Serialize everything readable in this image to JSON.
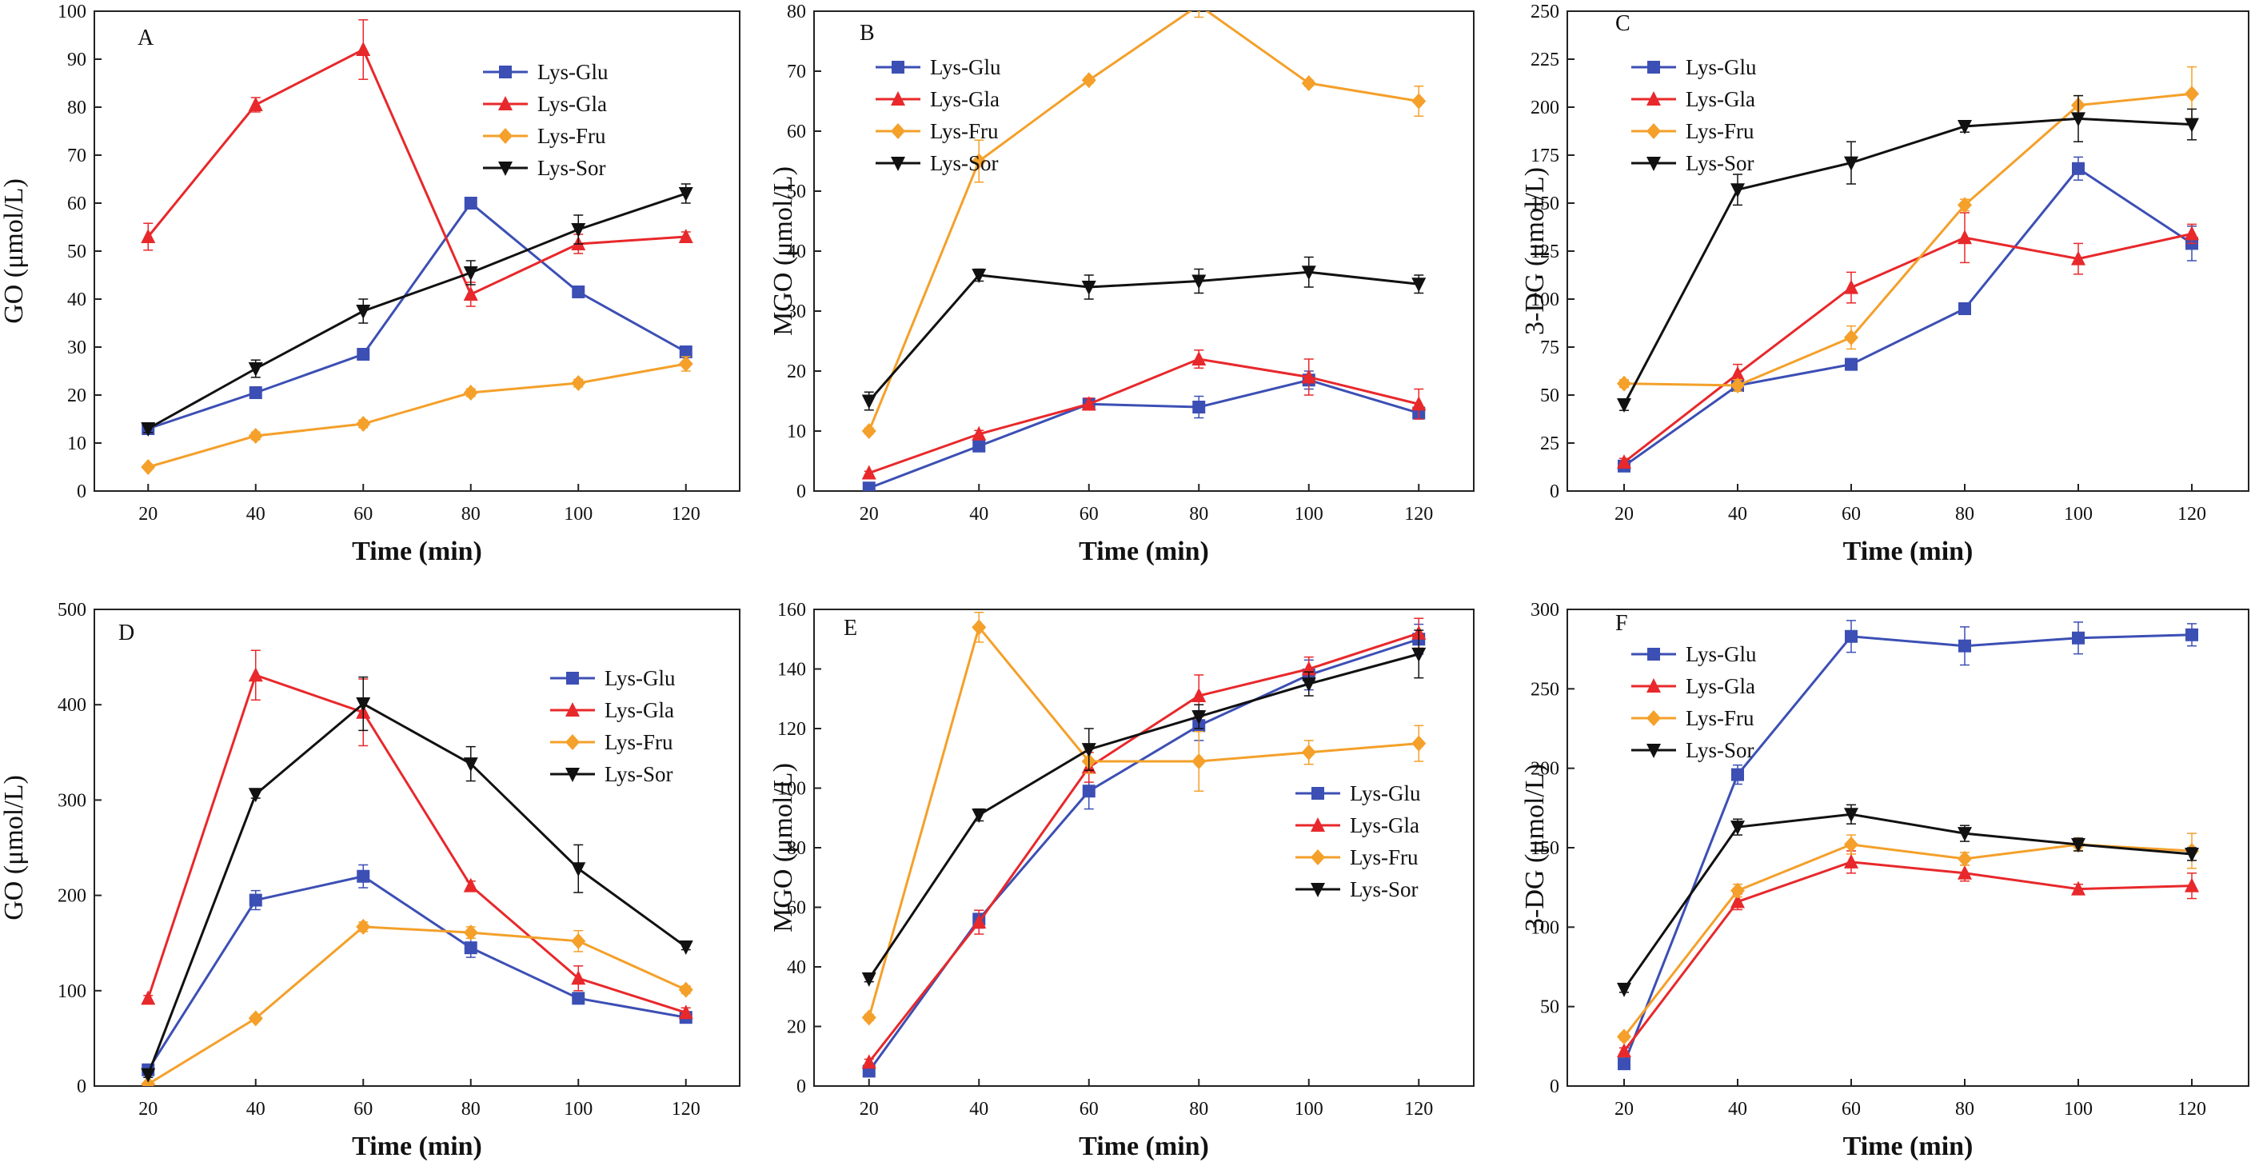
{
  "figure": {
    "label": "Six-panel figure: GO, MGO and 3-DG concentrations over time"
  },
  "colors": {
    "Lys-Glu": "#3c4fb4",
    "Lys-Gla": "#e8282b",
    "Lys-Fru": "#f4a02a",
    "Lys-Sor": "#111111",
    "axis": "#222222"
  },
  "markers": {
    "Lys-Glu": "square",
    "Lys-Gla": "triangle-up",
    "Lys-Fru": "diamond",
    "Lys-Sor": "triangle-down"
  },
  "chart_data": [
    {
      "panel": "A",
      "type": "line",
      "xlabel": "Time (min)",
      "ylabel": "GO (μmol/L)",
      "x": [
        20,
        40,
        60,
        80,
        100,
        120
      ],
      "xlim": [
        10,
        130
      ],
      "ylim": [
        0,
        100
      ],
      "xticks": [
        20,
        40,
        60,
        80,
        100,
        120
      ],
      "yticks": [
        0,
        10,
        20,
        30,
        40,
        50,
        60,
        70,
        80,
        90,
        100
      ],
      "legend_position": "top-right",
      "legend_font": "serif",
      "series": [
        {
          "name": "Lys-Glu",
          "values": [
            13,
            20.5,
            28.5,
            60,
            41.5,
            29
          ],
          "errors": [
            0.5,
            0.8,
            1,
            0.8,
            1,
            0.8
          ]
        },
        {
          "name": "Lys-Gla",
          "values": [
            53,
            80.5,
            92,
            41,
            51.5,
            53
          ],
          "errors": [
            2.8,
            1.5,
            6.2,
            2.5,
            2,
            1
          ]
        },
        {
          "name": "Lys-Fru",
          "values": [
            5,
            11.5,
            14,
            20.5,
            22.5,
            26.5
          ],
          "errors": [
            0.4,
            0.8,
            0.8,
            0.8,
            0.8,
            1.5
          ]
        },
        {
          "name": "Lys-Sor",
          "values": [
            13,
            25.5,
            37.5,
            45.5,
            54.5,
            62
          ],
          "errors": [
            0.8,
            1.8,
            2.5,
            2.5,
            3,
            2
          ]
        }
      ]
    },
    {
      "panel": "B",
      "type": "line",
      "xlabel": "Time (min)",
      "ylabel": "MGO (μmol/L)",
      "x": [
        20,
        40,
        60,
        80,
        100,
        120
      ],
      "xlim": [
        10,
        130
      ],
      "ylim": [
        0,
        80
      ],
      "xticks": [
        20,
        40,
        60,
        80,
        100,
        120
      ],
      "yticks": [
        0,
        10,
        20,
        30,
        40,
        50,
        60,
        70,
        80
      ],
      "legend_position": "top-left",
      "legend_font": "serif",
      "series": [
        {
          "name": "Lys-Glu",
          "values": [
            0.5,
            7.5,
            14.5,
            14,
            18.5,
            13
          ],
          "errors": [
            0.3,
            0.8,
            1,
            1.8,
            1.5,
            1
          ]
        },
        {
          "name": "Lys-Gla",
          "values": [
            3,
            9.5,
            14.5,
            22,
            19,
            14.5
          ],
          "errors": [
            0.3,
            0.6,
            1,
            1.5,
            3,
            2.5
          ]
        },
        {
          "name": "Lys-Fru",
          "values": [
            10,
            55,
            68.5,
            81,
            68,
            65
          ],
          "errors": [
            0.5,
            3.5,
            0.5,
            2,
            0.5,
            2.5
          ]
        },
        {
          "name": "Lys-Sor",
          "values": [
            15,
            36,
            34,
            35,
            36.5,
            34.5
          ],
          "errors": [
            1.5,
            1,
            2,
            2,
            2.5,
            1.5
          ]
        }
      ]
    },
    {
      "panel": "C",
      "type": "line",
      "xlabel": "Time (min)",
      "ylabel": "3-DG (μmol/L)",
      "x": [
        20,
        40,
        60,
        80,
        100,
        120
      ],
      "xlim": [
        10,
        130
      ],
      "ylim": [
        0,
        250
      ],
      "xticks": [
        20,
        40,
        60,
        80,
        100,
        120
      ],
      "yticks": [
        0,
        25,
        50,
        75,
        100,
        125,
        150,
        175,
        200,
        225,
        250
      ],
      "legend_position": "top-left",
      "legend_font": "serif",
      "series": [
        {
          "name": "Lys-Glu",
          "values": [
            13,
            55,
            66,
            95,
            168,
            129
          ],
          "errors": [
            2,
            3,
            3,
            3,
            6,
            9
          ]
        },
        {
          "name": "Lys-Gla",
          "values": [
            15,
            61,
            106,
            132,
            121,
            134
          ],
          "errors": [
            2,
            5,
            8,
            13,
            8,
            5
          ]
        },
        {
          "name": "Lys-Fru",
          "values": [
            56,
            55,
            80,
            149,
            201,
            207
          ],
          "errors": [
            2,
            3,
            6,
            3,
            5,
            14
          ]
        },
        {
          "name": "Lys-Sor",
          "values": [
            45,
            157,
            171,
            190,
            194,
            191
          ],
          "errors": [
            3,
            8,
            11,
            3,
            12,
            8
          ]
        }
      ]
    },
    {
      "panel": "D",
      "type": "line",
      "xlabel": "Time (min)",
      "ylabel": "GO (μmol/L)",
      "x": [
        20,
        40,
        60,
        80,
        100,
        120
      ],
      "xlim": [
        10,
        130
      ],
      "ylim": [
        0,
        500
      ],
      "xticks": [
        20,
        40,
        60,
        80,
        100,
        120
      ],
      "yticks": [
        0,
        100,
        200,
        300,
        400,
        500
      ],
      "legend_position": "top-right",
      "legend_font": "sans",
      "series": [
        {
          "name": "Lys-Glu",
          "values": [
            17,
            195,
            220,
            145,
            92,
            72
          ],
          "errors": [
            3,
            10,
            12,
            10,
            4,
            4
          ]
        },
        {
          "name": "Lys-Gla",
          "values": [
            92,
            431,
            392,
            210,
            113,
            77
          ],
          "errors": [
            3,
            26,
            35,
            5,
            13,
            5
          ]
        },
        {
          "name": "Lys-Fru",
          "values": [
            2,
            71,
            167,
            161,
            152,
            101
          ],
          "errors": [
            1,
            3,
            5,
            6,
            11,
            4
          ]
        },
        {
          "name": "Lys-Sor",
          "values": [
            12,
            306,
            401,
            338,
            228,
            146
          ],
          "errors": [
            3,
            4,
            28,
            18,
            25,
            3
          ]
        }
      ]
    },
    {
      "panel": "E",
      "type": "line",
      "xlabel": "Time (min)",
      "ylabel": "MGO (μmol/L)",
      "x": [
        20,
        40,
        60,
        80,
        100,
        120
      ],
      "xlim": [
        10,
        130
      ],
      "ylim": [
        0,
        160
      ],
      "xticks": [
        20,
        40,
        60,
        80,
        100,
        120
      ],
      "yticks": [
        0,
        20,
        40,
        60,
        80,
        100,
        120,
        140,
        160
      ],
      "legend_position": "center-right",
      "legend_font": "sans",
      "series": [
        {
          "name": "Lys-Glu",
          "values": [
            5,
            56,
            99,
            121,
            138,
            150
          ],
          "errors": [
            1,
            3,
            6,
            5,
            5,
            5
          ]
        },
        {
          "name": "Lys-Gla",
          "values": [
            8,
            55,
            107,
            131,
            140,
            152
          ],
          "errors": [
            1,
            4,
            5,
            7,
            4,
            5
          ]
        },
        {
          "name": "Lys-Fru",
          "values": [
            23,
            154,
            109,
            109,
            112,
            115
          ],
          "errors": [
            1,
            5,
            4,
            10,
            4,
            6
          ]
        },
        {
          "name": "Lys-Sor",
          "values": [
            36,
            91,
            113,
            124,
            135,
            145
          ],
          "errors": [
            1,
            2,
            7,
            4,
            4,
            8
          ]
        }
      ]
    },
    {
      "panel": "F",
      "type": "line",
      "xlabel": "Time (min)",
      "ylabel": "3-DG (μmol/L)",
      "x": [
        20,
        40,
        60,
        80,
        100,
        120
      ],
      "xlim": [
        10,
        130
      ],
      "ylim": [
        0,
        300
      ],
      "xticks": [
        20,
        40,
        60,
        80,
        100,
        120
      ],
      "yticks": [
        0,
        50,
        100,
        150,
        200,
        250,
        300
      ],
      "legend_position": "top-left",
      "legend_font": "serif",
      "series": [
        {
          "name": "Lys-Glu",
          "values": [
            14,
            196,
            283,
            277,
            282,
            284
          ],
          "errors": [
            2,
            6,
            10,
            12,
            10,
            7
          ]
        },
        {
          "name": "Lys-Gla",
          "values": [
            22,
            116,
            141,
            134,
            124,
            126
          ],
          "errors": [
            2,
            5,
            7,
            5,
            3,
            8
          ]
        },
        {
          "name": "Lys-Fru",
          "values": [
            31,
            123,
            152,
            143,
            152,
            148
          ],
          "errors": [
            2,
            4,
            6,
            4,
            4,
            11
          ]
        },
        {
          "name": "Lys-Sor",
          "values": [
            61,
            163,
            171,
            159,
            152,
            146
          ],
          "errors": [
            2,
            5,
            6,
            5,
            4,
            4
          ]
        }
      ]
    }
  ]
}
